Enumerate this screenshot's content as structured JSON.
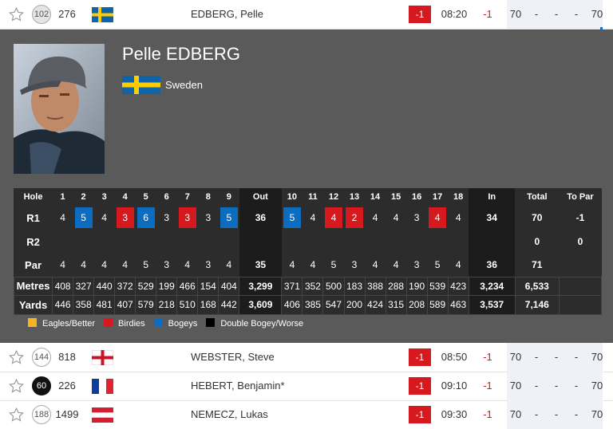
{
  "players": [
    {
      "position": 102,
      "number": 276,
      "name": "EDBERG, Pelle",
      "today": -1,
      "tee_time": "08:20",
      "to_par": -1,
      "rounds": [
        70,
        "-",
        "-",
        "-"
      ],
      "total": 70
    },
    {
      "position": 144,
      "number": 818,
      "name": "WEBSTER, Steve",
      "today": -1,
      "tee_time": "08:50",
      "to_par": -1,
      "rounds": [
        70,
        "-",
        "-",
        "-"
      ],
      "total": 70
    },
    {
      "position": 60,
      "number": 226,
      "name": "HEBERT, Benjamin*",
      "today": -1,
      "tee_time": "09:10",
      "to_par": -1,
      "rounds": [
        70,
        "-",
        "-",
        "-"
      ],
      "total": 70
    },
    {
      "position": 188,
      "number": 1499,
      "name": "NEMECZ, Lukas",
      "today": -1,
      "tee_time": "09:30",
      "to_par": -1,
      "rounds": [
        70,
        "-",
        "-",
        "-"
      ],
      "total": 70
    }
  ],
  "detail": {
    "name": "Pelle EDBERG",
    "country": "Sweden"
  },
  "scorecard": {
    "header": [
      "Hole",
      1,
      2,
      3,
      4,
      5,
      6,
      7,
      8,
      9,
      "Out",
      10,
      11,
      12,
      13,
      14,
      15,
      16,
      17,
      18,
      "In",
      "Total",
      "To Par"
    ],
    "rows": [
      {
        "label": "R1",
        "cells": [
          4,
          5,
          4,
          3,
          6,
          3,
          3,
          3,
          5,
          36,
          5,
          4,
          4,
          2,
          4,
          4,
          3,
          4,
          4,
          34,
          70,
          -1
        ]
      },
      {
        "label": "R2",
        "cells": [
          null,
          null,
          null,
          null,
          null,
          null,
          null,
          null,
          null,
          null,
          null,
          null,
          null,
          null,
          null,
          null,
          null,
          null,
          null,
          null,
          0,
          0
        ]
      },
      {
        "label": "Par",
        "cells": [
          4,
          4,
          4,
          4,
          5,
          3,
          4,
          3,
          4,
          35,
          4,
          4,
          5,
          3,
          4,
          4,
          3,
          5,
          4,
          36,
          71,
          null
        ]
      },
      {
        "label": "Metres",
        "cells": [
          408,
          327,
          440,
          372,
          529,
          199,
          466,
          154,
          404,
          "3,299",
          371,
          352,
          500,
          183,
          388,
          288,
          190,
          539,
          423,
          "3,234",
          "6,533",
          null
        ]
      },
      {
        "label": "Yards",
        "cells": [
          446,
          358,
          481,
          407,
          579,
          218,
          510,
          168,
          442,
          "3,609",
          406,
          385,
          547,
          200,
          424,
          315,
          208,
          589,
          463,
          "3,537",
          "7,146",
          null
        ]
      }
    ]
  },
  "legend": [
    {
      "label": "Eagles/Better",
      "color": "#f4b521"
    },
    {
      "label": "Birdies",
      "color": "#d6181f"
    },
    {
      "label": "Bogeys",
      "color": "#0b6cc0"
    },
    {
      "label": "Double Bogey/Worse",
      "color": "#000000"
    }
  ]
}
